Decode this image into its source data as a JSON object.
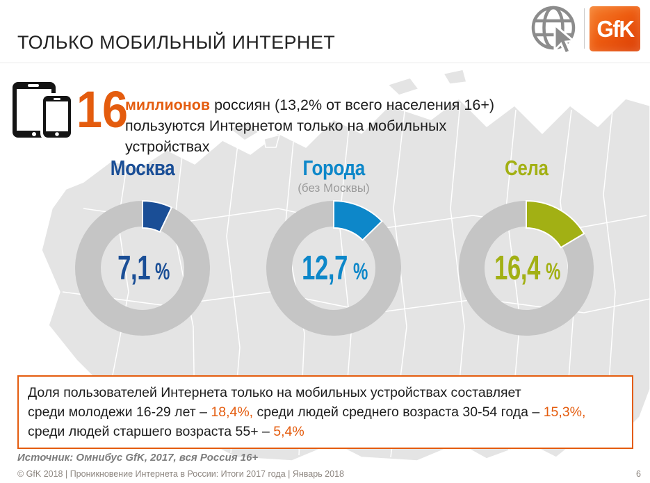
{
  "colors": {
    "accent_orange": "#e45c0e",
    "dark_blue": "#1a4e96",
    "bright_blue": "#0d87c9",
    "olive_green": "#a2b014",
    "remainder_gray": "#c5c5c5",
    "map_gray": "#e4e4e4"
  },
  "header": {
    "title": "ТОЛЬКО МОБИЛЬНЫЙ ИНТЕРНЕТ",
    "globe_icon": "globe-with-cursor",
    "logo_text": "GfK"
  },
  "headline": {
    "devices_icon": "tablet-and-smartphone",
    "big_number": "16",
    "bold_word": "миллионов",
    "line1_rest": " россиян (13,2% от всего населения 16+)",
    "line2": "пользуются Интернетом только на мобильных устройствах"
  },
  "chart_data": {
    "type": "pie",
    "subtype": "three-donut-comparison",
    "units": "%",
    "remainder_color": "#c5c5c5",
    "start_angle_deg": 0,
    "series": [
      {
        "category": "Москва",
        "subcategory": "",
        "value": 7.1,
        "display": "7,1",
        "unit": "%",
        "color": "#1a4e96"
      },
      {
        "category": "Города",
        "subcategory": "(без Москвы)",
        "value": 12.7,
        "display": "12,7",
        "unit": "%",
        "color": "#0d87c9"
      },
      {
        "category": "Села",
        "subcategory": "",
        "value": 16.4,
        "display": "16,4",
        "unit": "%",
        "color": "#a2b014"
      }
    ]
  },
  "callout": {
    "line1": "Доля пользователей Интернета только на мобильных устройствах составляет",
    "line2": [
      {
        "t": "среди молодежи 16-29 лет – ",
        "a": false
      },
      {
        "t": "18,4%,",
        "a": true
      },
      {
        "t": " среди людей среднего возраста 30-54 года – ",
        "a": false
      },
      {
        "t": "15,3%,",
        "a": true
      }
    ],
    "line3": [
      {
        "t": "среди людей старшего возраста 55+ – ",
        "a": false
      },
      {
        "t": "5,4%",
        "a": true
      }
    ]
  },
  "footer": {
    "source": "Источник: Омнибус GfK, 2017, вся Россия 16+",
    "copyright": "© GfK 2018 | Проникновение Интернета в России: Итоги 2017 года | Январь 2018",
    "page_number": "6"
  }
}
